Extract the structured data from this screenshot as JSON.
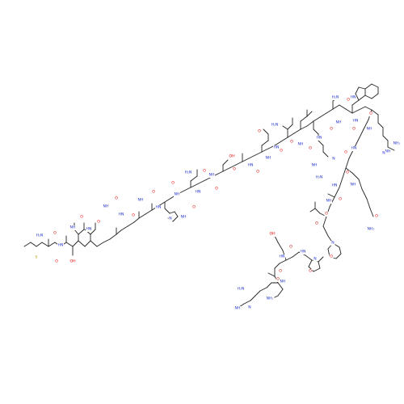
{
  "colors": {
    "bond": "#222222",
    "O": "#e00000",
    "N": "#2233cc",
    "S": "#b8a000",
    "background": "#ffffff"
  },
  "labels": [
    {
      "name": "s-thioether",
      "text": "S",
      "el": "S"
    },
    {
      "name": "n-terminal-amine",
      "text": "H₂N",
      "el": "N"
    },
    {
      "name": "o-met-carbonyl",
      "text": "O",
      "el": "O"
    },
    {
      "name": "nh-thr",
      "text": "HN",
      "el": "N"
    },
    {
      "name": "oh-thr",
      "text": "OH",
      "el": "O"
    },
    {
      "name": "o-thr-carbonyl",
      "text": "O",
      "el": "O"
    },
    {
      "name": "nh-leu1",
      "text": "NH",
      "el": "N"
    },
    {
      "name": "o-leu1-carbonyl",
      "text": "O",
      "el": "O"
    },
    {
      "name": "nh-ile",
      "text": "HN",
      "el": "N"
    },
    {
      "name": "o-ile-carbonyl",
      "text": "O",
      "el": "O"
    },
    {
      "name": "nh-gly1",
      "text": "NH",
      "el": "N"
    },
    {
      "name": "o-gly1-carbonyl",
      "text": "O",
      "el": "O"
    },
    {
      "name": "nh-ala1",
      "text": "HN",
      "el": "N"
    },
    {
      "name": "o-ala1-carbonyl",
      "text": "O",
      "el": "O"
    },
    {
      "name": "nh-ala2",
      "text": "NH",
      "el": "N"
    },
    {
      "name": "o-ala2-carbonyl",
      "text": "O",
      "el": "O"
    },
    {
      "name": "nh-his",
      "text": "HN",
      "el": "N"
    },
    {
      "name": "his-ring-nh",
      "text": "NH",
      "el": "N"
    },
    {
      "name": "his-ring-n",
      "text": "N",
      "el": "N"
    },
    {
      "name": "o-his-carbonyl",
      "text": "O",
      "el": "O"
    },
    {
      "name": "nh-asn",
      "text": "NH",
      "el": "N"
    },
    {
      "name": "asn-amide-nh2",
      "text": "H₂N",
      "el": "N"
    },
    {
      "name": "asn-amide-o",
      "text": "O",
      "el": "O"
    },
    {
      "name": "o-asn-carbonyl",
      "text": "O",
      "el": "O"
    },
    {
      "name": "nh-gly2",
      "text": "HN",
      "el": "N"
    },
    {
      "name": "o-gly2-carbonyl",
      "text": "O",
      "el": "O"
    },
    {
      "name": "nh-ser1",
      "text": "NH",
      "el": "N"
    },
    {
      "name": "oh-ser1",
      "text": "OH",
      "el": "O"
    },
    {
      "name": "o-ser1-carbonyl",
      "text": "O",
      "el": "O"
    },
    {
      "name": "nh-ala3",
      "text": "HN",
      "el": "N"
    },
    {
      "name": "o-ala3-carbonyl",
      "text": "O",
      "el": "O"
    },
    {
      "name": "nh-gln1",
      "text": "NH",
      "el": "N"
    },
    {
      "name": "gln1-amide-nh2",
      "text": "H₂N",
      "el": "N"
    },
    {
      "name": "gln1-amide-o",
      "text": "O",
      "el": "O"
    },
    {
      "name": "o-gln1-carbonyl",
      "text": "O",
      "el": "O"
    },
    {
      "name": "nh-leu2",
      "text": "HN",
      "el": "N"
    },
    {
      "name": "o-leu2-carbonyl",
      "text": "O",
      "el": "O"
    },
    {
      "name": "nh-leu3",
      "text": "NH",
      "el": "N"
    },
    {
      "name": "o-leu3-carbonyl",
      "text": "O",
      "el": "O"
    },
    {
      "name": "nh-arg1",
      "text": "HN",
      "el": "N"
    },
    {
      "name": "arg1-guan-nh",
      "text": "NH",
      "el": "N"
    },
    {
      "name": "arg1-guan-nh2",
      "text": "H₂N",
      "el": "N"
    },
    {
      "name": "arg1-guan-n",
      "text": "N",
      "el": "N"
    },
    {
      "name": "o-arg1-carbonyl",
      "text": "O",
      "el": "O"
    },
    {
      "name": "nh-gln2",
      "text": "NH",
      "el": "N"
    },
    {
      "name": "gln2-amide-nh2",
      "text": "H₂N",
      "el": "N"
    },
    {
      "name": "gln2-amide-o",
      "text": "O",
      "el": "O"
    },
    {
      "name": "o-gln2-carbonyl",
      "text": "O",
      "el": "O"
    },
    {
      "name": "nh-trp",
      "text": "HN",
      "el": "N"
    },
    {
      "name": "trp-indole-nh",
      "text": "HN",
      "el": "N"
    },
    {
      "name": "o-trp-carbonyl",
      "text": "O",
      "el": "O"
    },
    {
      "name": "nh-arg2",
      "text": "NH",
      "el": "N"
    },
    {
      "name": "arg2-guan-nh",
      "text": "NH",
      "el": "N"
    },
    {
      "name": "arg2-guan-nh2",
      "text": "NH₂",
      "el": "N"
    },
    {
      "name": "arg2-guan-n",
      "text": "N",
      "el": "N"
    },
    {
      "name": "o-arg2-carbonyl",
      "text": "O",
      "el": "O"
    },
    {
      "name": "nh-gly3",
      "text": "HN",
      "el": "N"
    },
    {
      "name": "o-gly3-carbonyl",
      "text": "O",
      "el": "O"
    },
    {
      "name": "nh-gln3",
      "text": "NH",
      "el": "N"
    },
    {
      "name": "gln3-amide-nh2",
      "text": "NH₂",
      "el": "N"
    },
    {
      "name": "gln3-amide-o",
      "text": "O",
      "el": "O"
    },
    {
      "name": "o-gln3-carbonyl",
      "text": "O",
      "el": "O"
    },
    {
      "name": "nh-leu4",
      "text": "HN",
      "el": "N"
    },
    {
      "name": "o-leu4-carbonyl",
      "text": "O",
      "el": "O"
    },
    {
      "name": "nh-gly4",
      "text": "NH",
      "el": "N"
    },
    {
      "name": "o-gly4-carbonyl",
      "text": "O",
      "el": "O"
    },
    {
      "name": "n-pro1",
      "text": "N",
      "el": "N"
    },
    {
      "name": "o-pro1-carbonyl",
      "text": "O",
      "el": "O"
    },
    {
      "name": "n-pro2",
      "text": "N",
      "el": "N"
    },
    {
      "name": "o-pro2-carbonyl",
      "text": "O",
      "el": "O"
    },
    {
      "name": "nh-gly5",
      "text": "HN",
      "el": "N"
    },
    {
      "name": "o-gly5-carbonyl",
      "text": "O",
      "el": "O"
    },
    {
      "name": "nh-ser2",
      "text": "HN",
      "el": "N"
    },
    {
      "name": "oh-ser2",
      "text": "OH",
      "el": "O"
    },
    {
      "name": "o-ser2-carbonyl",
      "text": "O",
      "el": "O"
    },
    {
      "name": "nh-arg3",
      "text": "NH",
      "el": "N"
    },
    {
      "name": "arg3-guan-nh2",
      "text": "H₂N",
      "el": "N"
    },
    {
      "name": "arg3-guan-nh",
      "text": "NH",
      "el": "N"
    },
    {
      "name": "arg3-guan-n",
      "text": "N",
      "el": "N"
    },
    {
      "name": "c-terminal-amide-nh2",
      "text": "NH₂",
      "el": "N"
    },
    {
      "name": "c-terminal-amide-o",
      "text": "O",
      "el": "O"
    }
  ]
}
